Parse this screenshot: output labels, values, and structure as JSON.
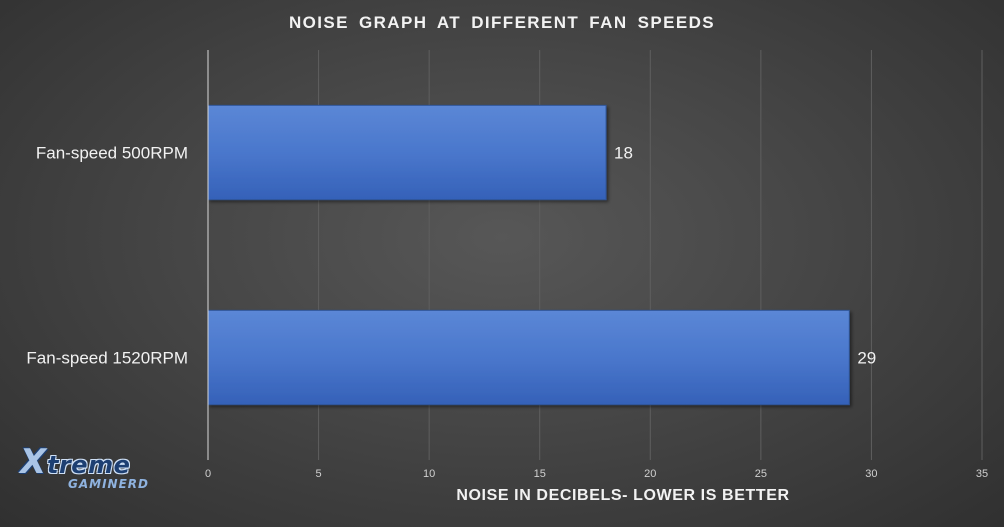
{
  "chart_data": {
    "type": "bar",
    "orientation": "horizontal",
    "title": "NOISE GRAPH AT DIFFERENT FAN SPEEDS",
    "xlabel": "NOISE IN DECIBELS- LOWER IS BETTER",
    "ylabel": "",
    "categories": [
      "Fan-speed 500RPM",
      "Fan-speed 1520RPM"
    ],
    "values": [
      18,
      29
    ],
    "data_labels": [
      "18",
      "29"
    ],
    "xlim": [
      0,
      35
    ],
    "xticks": [
      0,
      5,
      10,
      15,
      20,
      25,
      30,
      35
    ],
    "xtick_labels": [
      "0",
      "5",
      "10",
      "15",
      "20",
      "25",
      "30",
      "35"
    ],
    "grid": "vertical",
    "legend": "none",
    "bar_color": "#4472c4"
  },
  "logo": {
    "mark": "X",
    "word1": "treme",
    "word2": "GAMINERD"
  },
  "colors": {
    "background": "#464646",
    "text": "#f2f2f2",
    "gridline": "#5f5f5f",
    "axis": "#d9d9d9"
  }
}
